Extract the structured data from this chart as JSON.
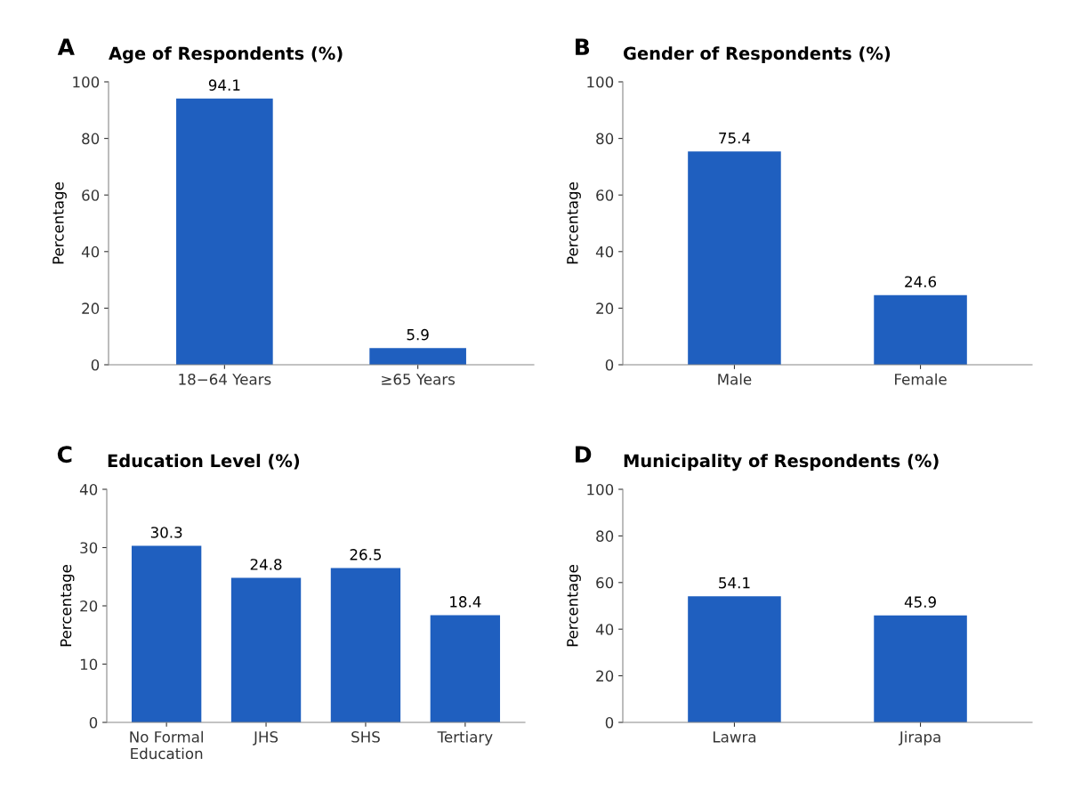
{
  "chart_data": [
    {
      "type": "bar",
      "title": "Age of Respondents (%)",
      "ylabel": "Percentage",
      "annotations": [
        "A"
      ],
      "categories": [
        "18−64 Years",
        "≥65 Years"
      ],
      "values": [
        94.1,
        5.9
      ],
      "color": "#1f5fbf",
      "ylim": [
        0,
        100
      ],
      "yticks": [
        0,
        20,
        40,
        60,
        80,
        100
      ],
      "data_labels": true
    },
    {
      "type": "bar",
      "title": "Gender of Respondents (%)",
      "ylabel": "Percentage",
      "annotations": [
        "B"
      ],
      "categories": [
        "Male",
        "Female"
      ],
      "values": [
        75.4,
        24.6
      ],
      "color": "#1f5fbf",
      "ylim": [
        0,
        100
      ],
      "yticks": [
        0,
        20,
        40,
        60,
        80,
        100
      ],
      "data_labels": true
    },
    {
      "type": "bar",
      "title": "Education Level (%)",
      "ylabel": "Percentage",
      "annotations": [
        "C"
      ],
      "categories": [
        "No Formal\nEducation",
        "JHS",
        "SHS",
        "Tertiary"
      ],
      "values": [
        30.3,
        24.8,
        26.5,
        18.4
      ],
      "color": "#1f5fbf",
      "ylim": [
        0,
        40
      ],
      "yticks": [
        0,
        10,
        20,
        30,
        40
      ],
      "data_labels": true
    },
    {
      "type": "bar",
      "title": "Municipality of Respondents (%)",
      "ylabel": "Percentage",
      "annotations": [
        "D"
      ],
      "categories": [
        "Lawra",
        "Jirapa"
      ],
      "values": [
        54.1,
        45.9
      ],
      "color": "#1f5fbf",
      "ylim": [
        0,
        100
      ],
      "yticks": [
        0,
        20,
        40,
        60,
        80,
        100
      ],
      "data_labels": true
    }
  ]
}
